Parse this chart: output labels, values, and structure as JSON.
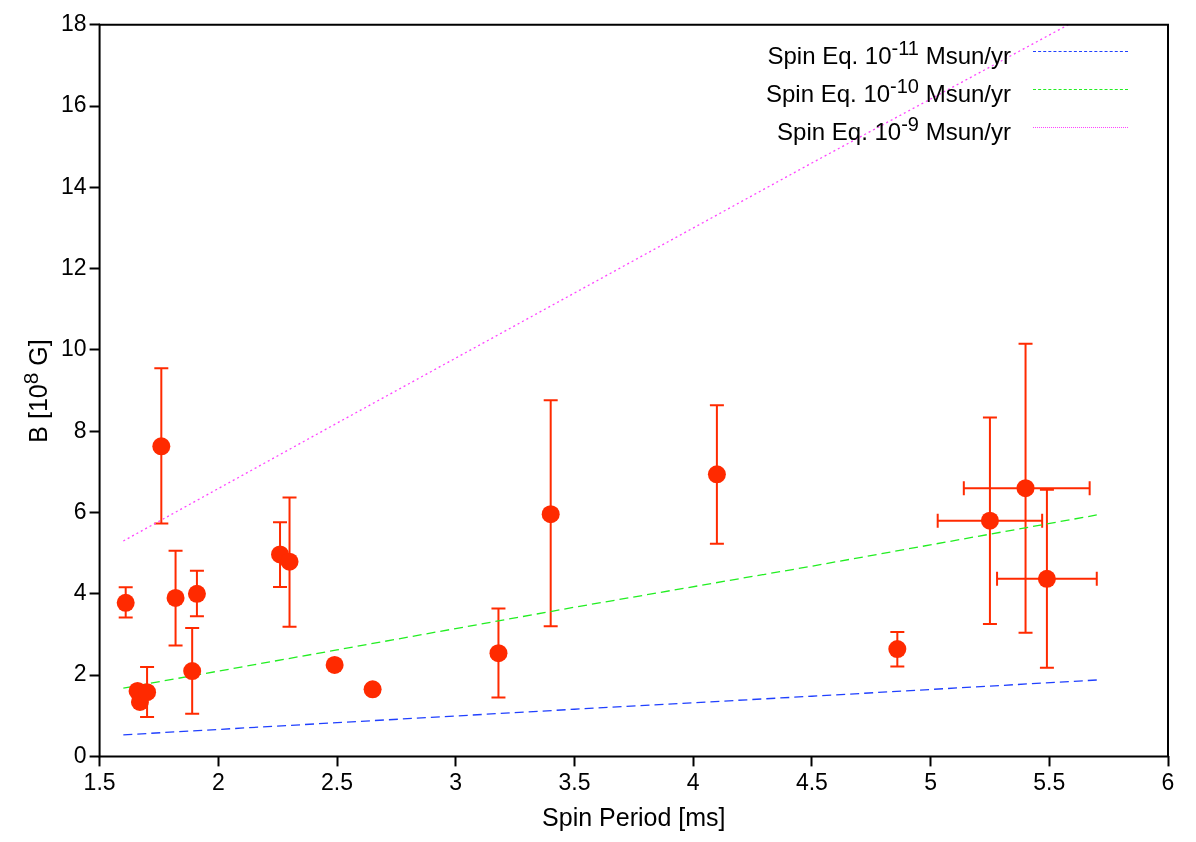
{
  "chart_data": {
    "type": "scatter",
    "xlabel": "Spin Period [ms]",
    "ylabel": "B [10$^{8}$ G]",
    "xlim": [
      1.5,
      6
    ],
    "xticks": [
      1.5,
      2,
      2.5,
      3,
      3.5,
      4,
      4.5,
      5,
      5.5,
      6
    ],
    "ylim": [
      0,
      18
    ],
    "yticks": [
      0,
      2,
      4,
      6,
      8,
      10,
      12,
      14,
      16,
      18
    ],
    "grid": false,
    "legend": "top right",
    "series": [
      {
        "type": "scatter",
        "color": "#ff2a00",
        "marker": "circle",
        "x": [
          1.61,
          1.76,
          1.82,
          1.91,
          1.89,
          1.66,
          1.67,
          1.7,
          2.26,
          2.3,
          2.49,
          2.65,
          3.18,
          3.4,
          4.1,
          4.86,
          5.25,
          5.4,
          5.49
        ],
        "values": [
          3.78,
          7.63,
          3.9,
          4.0,
          2.1,
          1.61,
          1.34,
          1.58,
          4.97,
          4.79,
          2.25,
          1.65,
          2.54,
          5.96,
          6.94,
          2.64,
          5.8,
          6.6,
          4.37
        ],
        "errors": [
          [
            3.42,
            4.16
          ],
          [
            5.73,
            9.55
          ],
          [
            2.73,
            5.06
          ],
          [
            3.45,
            4.57
          ],
          [
            1.05,
            3.16
          ],
          null,
          null,
          [
            0.97,
            2.2
          ],
          [
            4.17,
            5.76
          ],
          [
            3.19,
            6.37
          ],
          null,
          null,
          [
            1.45,
            3.64
          ],
          [
            3.2,
            8.76
          ],
          [
            5.23,
            8.64
          ],
          [
            2.21,
            3.06
          ],
          [
            3.26,
            8.34
          ],
          [
            3.04,
            10.15
          ],
          [
            2.18,
            6.56
          ]
        ],
        "xerrors": [
          null,
          null,
          null,
          null,
          null,
          null,
          null,
          null,
          null,
          null,
          null,
          null,
          null,
          null,
          null,
          null,
          [
            5.03,
            5.47
          ],
          [
            5.14,
            5.67
          ],
          [
            5.28,
            5.7
          ]
        ]
      },
      {
        "type": "line",
        "name": "Spin Eq. 10$^{-11}$ Msun/yr",
        "color": "#2040ff",
        "line_style": "dashed",
        "marker": "none",
        "x": [
          1.6,
          2.5,
          3.5,
          4.5,
          5.7
        ],
        "values": [
          0.53,
          0.83,
          1.16,
          1.48,
          1.88
        ]
      },
      {
        "type": "line",
        "name": "Spin Eq. 10$^{-10}$ Msun/yr",
        "color": "#22ee22",
        "line_style": "dashed",
        "marker": "none",
        "x": [
          1.6,
          2.5,
          3.5,
          4.5,
          5.7
        ],
        "values": [
          1.68,
          2.62,
          3.67,
          4.68,
          5.94
        ]
      },
      {
        "type": "line",
        "name": "Spin Eq. 10$^{-9}$ Msun/yr",
        "color": "#ff44ff",
        "line_style": "dotted",
        "marker": "none",
        "x": [
          1.6,
          2.5,
          3.5,
          4.5,
          5.58
        ],
        "values": [
          5.3,
          8.2,
          11.4,
          14.6,
          18
        ]
      }
    ]
  }
}
